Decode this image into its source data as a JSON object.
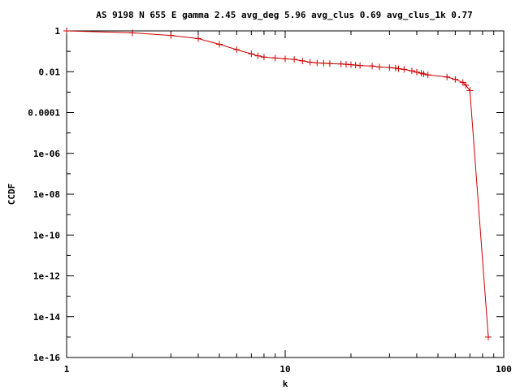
{
  "chart_data": {
    "type": "line",
    "title": "AS 9198 N 655 E gamma 2.45 avg_deg 5.96 avg_clus 0.69 avg_clus_1k 0.77",
    "xlabel": "k",
    "ylabel": "CCDF",
    "xscale": "log",
    "yscale": "log",
    "xlim": [
      1,
      100
    ],
    "ylim": [
      1e-16,
      1
    ],
    "x_ticks": [
      {
        "value": 1,
        "label": "1"
      },
      {
        "value": 10,
        "label": "10"
      },
      {
        "value": 100,
        "label": "100"
      }
    ],
    "y_ticks": [
      {
        "value": 1,
        "label": "1"
      },
      {
        "value": 0.01,
        "label": "0.01"
      },
      {
        "value": 0.0001,
        "label": "0.0001"
      },
      {
        "value": 1e-06,
        "label": "1e-06"
      },
      {
        "value": 1e-08,
        "label": "1e-08"
      },
      {
        "value": 1e-10,
        "label": "1e-10"
      },
      {
        "value": 1e-12,
        "label": "1e-12"
      },
      {
        "value": 1e-14,
        "label": "1e-14"
      },
      {
        "value": 1e-16,
        "label": "1e-16"
      }
    ],
    "grid": false,
    "legend": "none",
    "color": "#cc0000",
    "marker": "plus",
    "x": [
      1,
      2,
      3,
      4,
      5,
      6,
      7,
      7.5,
      8,
      9,
      10,
      11,
      12,
      13,
      14,
      15,
      16,
      18,
      19,
      20,
      21,
      22,
      25,
      27,
      30,
      32,
      33,
      35,
      38,
      40,
      42,
      43,
      45,
      55,
      60,
      65,
      67,
      70,
      85
    ],
    "y": [
      1,
      0.8,
      0.6,
      0.42,
      0.22,
      0.12,
      0.075,
      0.06,
      0.052,
      0.047,
      0.043,
      0.04,
      0.034,
      0.029,
      0.027,
      0.026,
      0.025,
      0.024,
      0.023,
      0.022,
      0.021,
      0.02,
      0.019,
      0.017,
      0.016,
      0.015,
      0.014,
      0.013,
      0.011,
      0.0095,
      0.0085,
      0.0078,
      0.007,
      0.0055,
      0.0042,
      0.003,
      0.0022,
      0.0012,
      1e-15
    ]
  }
}
